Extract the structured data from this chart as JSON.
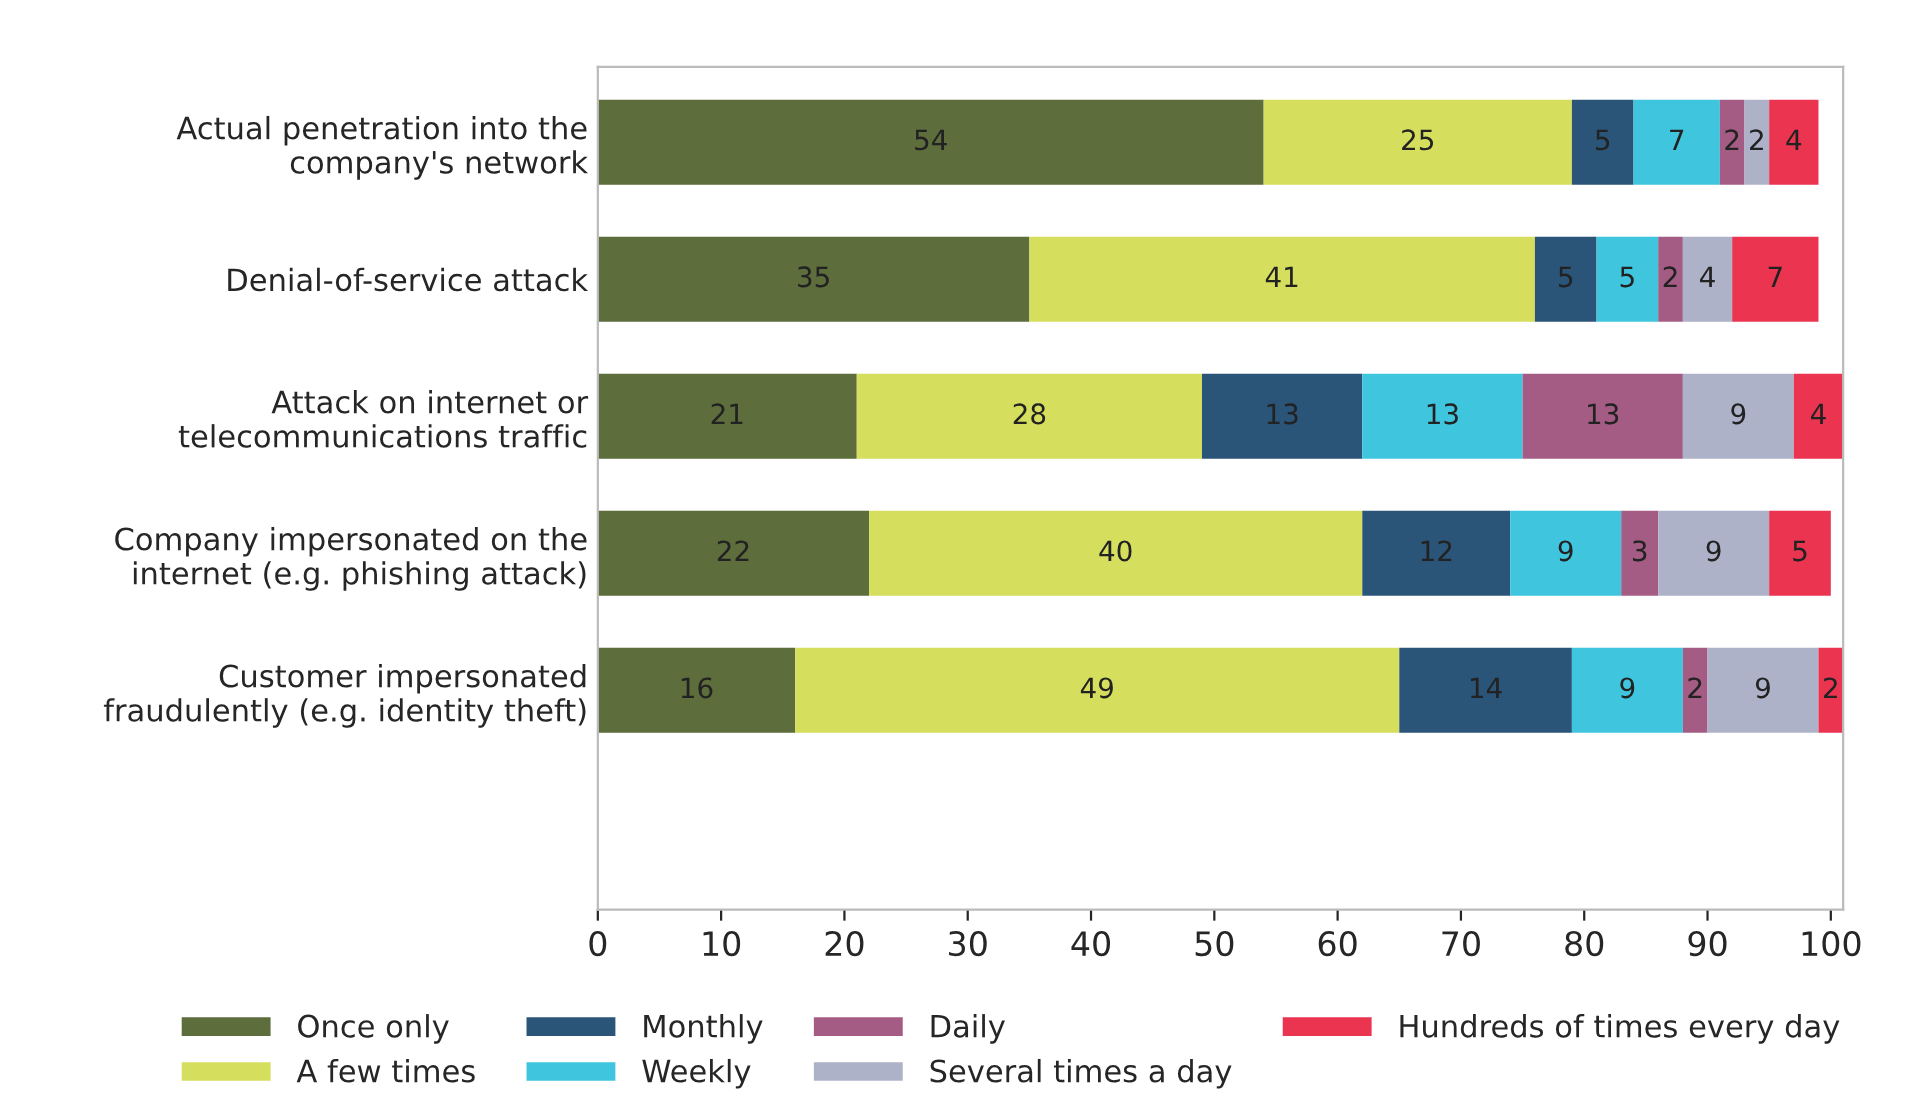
{
  "chart_data": {
    "type": "bar",
    "orientation": "horizontal",
    "stacked": true,
    "data_labels": true,
    "legend": "bottom",
    "grid": false,
    "categories": [
      "Actual penetration into the\ncompany's network",
      "Denial-of-service attack",
      "Attack on internet or\ntelecommunications traffic",
      "Company impersonated on the\ninternet (e.g. phishing attack)",
      "Customer impersonated\nfraudulently (e.g. identity theft)"
    ],
    "xlim": [
      0,
      101
    ],
    "xticks": [
      0,
      10,
      20,
      30,
      40,
      50,
      60,
      70,
      80,
      90,
      100
    ],
    "series": [
      {
        "name": "Once only",
        "color": "#5d6d3c",
        "values": [
          54,
          35,
          21,
          22,
          16
        ]
      },
      {
        "name": "A few times",
        "color": "#d6de5e",
        "values": [
          25,
          41,
          28,
          40,
          49
        ]
      },
      {
        "name": "Monthly",
        "color": "#2a5578",
        "values": [
          5,
          5,
          13,
          12,
          14
        ]
      },
      {
        "name": "Weekly",
        "color": "#3fc6de",
        "values": [
          7,
          5,
          13,
          9,
          9
        ]
      },
      {
        "name": "Daily",
        "color": "#a45c84",
        "values": [
          2,
          2,
          13,
          3,
          2
        ]
      },
      {
        "name": "Several times a day",
        "color": "#adb2c8",
        "values": [
          2,
          4,
          9,
          9,
          9
        ]
      },
      {
        "name": "Hundreds of times every day",
        "color": "#ea3450",
        "values": [
          4,
          7,
          4,
          5,
          2
        ]
      }
    ]
  }
}
